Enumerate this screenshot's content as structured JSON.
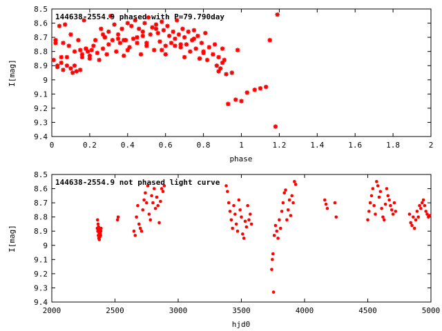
{
  "chart_data": [
    {
      "type": "scatter",
      "key": "144638-2554.9 phased with P=79.790day",
      "xlabel": "phase",
      "ylabel": "I[mag]",
      "xlim": [
        0,
        2
      ],
      "ylim": [
        8.5,
        9.4
      ],
      "y_reversed": true,
      "xticks": [
        "0",
        "0.2",
        "0.4",
        "0.6",
        "0.8",
        "1",
        "1.2",
        "1.4",
        "1.6",
        "1.8",
        "2"
      ],
      "yticks": [
        "8.5",
        "8.6",
        "8.7",
        "8.8",
        "8.9",
        "9",
        "9.1",
        "9.2",
        "9.3",
        "9.4"
      ],
      "marker_color": "#ff0000",
      "grid": false,
      "series": [
        {
          "x": [
            0.01,
            0.02,
            0.03,
            0.04,
            0.05,
            0.06,
            0.06,
            0.07,
            0.08,
            0.09,
            0.1,
            0.1,
            0.11,
            0.12,
            0.13,
            0.14,
            0.15,
            0.16,
            0.17,
            0.18,
            0.19,
            0.2,
            0.21,
            0.22,
            0.23,
            0.24,
            0.25,
            0.26,
            0.27,
            0.27,
            0.28,
            0.29,
            0.3,
            0.31,
            0.32,
            0.33,
            0.34,
            0.35,
            0.36,
            0.37,
            0.38,
            0.39,
            0.4,
            0.41,
            0.42,
            0.43,
            0.44,
            0.45,
            0.46,
            0.47,
            0.48,
            0.49,
            0.5,
            0.51,
            0.52,
            0.53,
            0.54,
            0.55,
            0.56,
            0.57,
            0.58,
            0.59,
            0.6,
            0.61,
            0.62,
            0.63,
            0.64,
            0.65,
            0.66,
            0.67,
            0.68,
            0.69,
            0.7,
            0.71,
            0.72,
            0.73,
            0.74,
            0.75,
            0.76,
            0.77,
            0.78,
            0.79,
            0.8,
            0.81,
            0.82,
            0.83,
            0.85,
            0.86,
            0.87,
            0.88,
            0.89,
            0.9,
            0.91,
            0.92,
            0.93,
            0.95,
            0.97,
            1.0,
            1.03,
            1.07,
            1.1,
            1.13,
            1.15,
            1.18,
            1.19,
            0.05,
            0.12,
            0.2,
            0.3,
            0.4,
            0.5,
            0.6,
            0.7,
            0.8,
            0.9,
            0.03,
            0.16,
            0.35,
            0.55,
            0.75,
            0.15,
            0.45,
            0.65,
            0.02,
            0.08,
            0.18,
            0.28,
            0.38,
            0.48,
            0.58,
            0.68,
            0.78,
            0.88,
            0.98
          ],
          "y": [
            8.86,
            8.72,
            8.9,
            8.62,
            8.88,
            8.74,
            8.93,
            8.61,
            8.9,
            8.76,
            8.92,
            8.68,
            8.95,
            8.8,
            8.94,
            8.72,
            8.93,
            8.84,
            8.58,
            8.78,
            8.8,
            8.83,
            8.79,
            8.76,
            8.72,
            8.81,
            8.86,
            8.64,
            8.68,
            8.78,
            8.7,
            8.82,
            8.66,
            8.55,
            8.72,
            8.61,
            8.8,
            8.68,
            8.74,
            8.64,
            8.83,
            8.72,
            8.6,
            8.77,
            8.62,
            8.71,
            8.58,
            8.74,
            8.64,
            8.82,
            8.69,
            8.6,
            8.76,
            8.56,
            8.68,
            8.63,
            8.79,
            8.61,
            8.67,
            8.73,
            8.59,
            8.65,
            8.76,
            8.62,
            8.69,
            8.74,
            8.66,
            8.71,
            8.58,
            8.68,
            8.77,
            8.64,
            8.7,
            8.75,
            8.66,
            8.8,
            8.72,
            8.65,
            8.78,
            8.69,
            8.85,
            8.74,
            8.8,
            8.67,
            8.86,
            8.77,
            8.82,
            8.75,
            8.9,
            8.84,
            8.92,
            8.78,
            8.86,
            8.96,
            9.17,
            8.95,
            9.14,
            9.15,
            9.09,
            9.07,
            9.06,
            9.05,
            8.72,
            9.33,
            8.54,
            8.84,
            8.9,
            8.85,
            8.75,
            8.79,
            8.74,
            8.82,
            8.84,
            8.81,
            8.88,
            8.91,
            8.82,
            8.71,
            8.64,
            8.71,
            8.79,
            8.7,
            8.76,
            8.74,
            8.84,
            8.78,
            8.7,
            8.72,
            8.66,
            8.79,
            8.75,
            8.85,
            8.94,
            8.79
          ]
        }
      ]
    },
    {
      "type": "scatter",
      "key": "144638-2554.9 not phased light curve",
      "xlabel": "hjd0",
      "ylabel": "I[mag]",
      "xlim": [
        2000,
        5000
      ],
      "ylim": [
        8.5,
        9.4
      ],
      "y_reversed": true,
      "xticks": [
        "2000",
        "2500",
        "3000",
        "3500",
        "4000",
        "4500",
        "5000"
      ],
      "yticks": [
        "8.5",
        "8.6",
        "8.7",
        "8.8",
        "8.9",
        "9",
        "9.1",
        "9.2",
        "9.3",
        "9.4"
      ],
      "marker_color": "#ff0000",
      "grid": false,
      "series": [
        {
          "x": [
            2360,
            2362,
            2364,
            2366,
            2368,
            2370,
            2372,
            2374,
            2376,
            2378,
            2380,
            2382,
            2384,
            2386,
            2388,
            2390,
            2520,
            2525,
            2650,
            2660,
            2670,
            2680,
            2690,
            2700,
            2710,
            2720,
            2730,
            2740,
            2750,
            2760,
            2770,
            2780,
            2790,
            2800,
            2810,
            2820,
            2830,
            2840,
            2850,
            2860,
            2870,
            2880,
            2890,
            3380,
            3390,
            3400,
            3410,
            3420,
            3430,
            3440,
            3450,
            3460,
            3470,
            3480,
            3490,
            3500,
            3510,
            3520,
            3530,
            3540,
            3550,
            3560,
            3570,
            3580,
            3740,
            3745,
            3750,
            3755,
            3760,
            3770,
            3780,
            3790,
            3800,
            3810,
            3820,
            3830,
            3840,
            3850,
            3860,
            3870,
            3880,
            3890,
            3900,
            3910,
            3920,
            3930,
            4160,
            4170,
            4180,
            4240,
            4250,
            4500,
            4510,
            4520,
            4530,
            4540,
            4550,
            4560,
            4570,
            4580,
            4590,
            4600,
            4610,
            4620,
            4630,
            4640,
            4650,
            4660,
            4670,
            4680,
            4690,
            4700,
            4710,
            4720,
            4830,
            4840,
            4850,
            4860,
            4870,
            4880,
            4890,
            4900,
            4910,
            4920,
            4930,
            4940,
            4950,
            4960,
            4970,
            4980,
            4990
          ],
          "y": [
            8.88,
            8.82,
            8.9,
            8.85,
            8.93,
            8.87,
            8.95,
            8.91,
            8.96,
            8.89,
            8.94,
            8.9,
            8.92,
            8.93,
            8.9,
            8.88,
            8.82,
            8.8,
            8.9,
            8.93,
            8.8,
            8.72,
            8.85,
            8.88,
            8.9,
            8.75,
            8.68,
            8.63,
            8.7,
            8.58,
            8.78,
            8.82,
            8.65,
            8.7,
            8.6,
            8.74,
            8.66,
            8.72,
            8.84,
            8.69,
            8.6,
            8.62,
            8.58,
            8.58,
            8.62,
            8.7,
            8.76,
            8.82,
            8.88,
            8.72,
            8.78,
            8.85,
            8.9,
            8.68,
            8.75,
            8.8,
            8.92,
            8.95,
            8.83,
            8.87,
            8.72,
            8.82,
            8.78,
            8.85,
            9.17,
            9.1,
            9.06,
            9.33,
            8.93,
            8.86,
            8.9,
            8.95,
            8.82,
            8.88,
            8.76,
            8.7,
            8.63,
            8.61,
            8.82,
            8.75,
            8.68,
            8.79,
            8.65,
            8.7,
            8.55,
            8.57,
            8.68,
            8.71,
            8.74,
            8.7,
            8.8,
            8.82,
            8.76,
            8.7,
            8.65,
            8.6,
            8.72,
            8.78,
            8.55,
            8.58,
            8.66,
            8.62,
            8.74,
            8.8,
            8.82,
            8.71,
            8.6,
            8.65,
            8.68,
            8.72,
            8.75,
            8.78,
            8.7,
            8.76,
            8.78,
            8.84,
            8.86,
            8.8,
            8.88,
            8.82,
            8.76,
            8.8,
            8.72,
            8.74,
            8.7,
            8.68,
            8.72,
            8.76,
            8.78,
            8.8,
            8.79
          ]
        }
      ]
    }
  ]
}
